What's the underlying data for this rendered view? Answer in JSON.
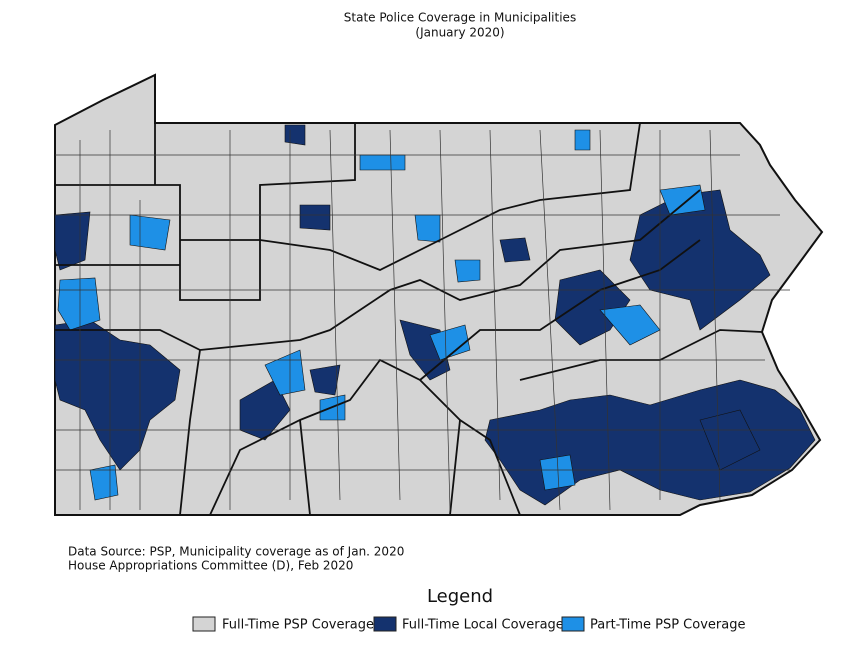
{
  "header": {
    "title": "State Police Coverage in Municipalities",
    "subtitle": "(January 2020)"
  },
  "source": [
    "Data Source: PSP, Municipality coverage as of Jan. 2020",
    "House Appropriations Committee (D), Feb 2020"
  ],
  "legend": {
    "title": "Legend",
    "items": [
      {
        "label": "Full-Time PSP Coverage",
        "color": "#d4d4d4"
      },
      {
        "label": "Full-Time Local Coverage",
        "color": "#14326e"
      },
      {
        "label": "Part-Time PSP Coverage",
        "color": "#1e90e6"
      }
    ]
  }
}
